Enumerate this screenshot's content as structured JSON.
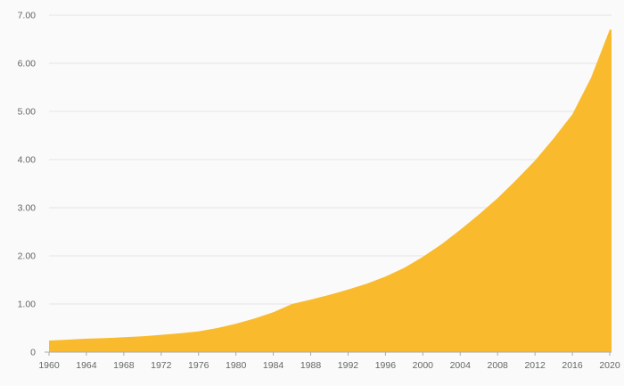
{
  "chart": {
    "background": "#fafafa",
    "area_color": "#f9bb2d",
    "grid_color": "#e4e4e4",
    "axis_color": "#aaaaaa",
    "tick_color": "#aaaaaa",
    "label_color": "#666666"
  },
  "chart_data": {
    "type": "area",
    "title": "",
    "xlabel": "",
    "ylabel": "",
    "x": [
      1960,
      1962,
      1964,
      1966,
      1968,
      1970,
      1972,
      1974,
      1976,
      1978,
      1980,
      1982,
      1984,
      1986,
      1988,
      1990,
      1992,
      1994,
      1996,
      1998,
      2000,
      2002,
      2004,
      2006,
      2008,
      2010,
      2012,
      2014,
      2016,
      2018,
      2020
    ],
    "values": [
      0.24,
      0.26,
      0.28,
      0.29,
      0.31,
      0.33,
      0.36,
      0.39,
      0.43,
      0.5,
      0.59,
      0.7,
      0.83,
      1.0,
      1.09,
      1.19,
      1.3,
      1.42,
      1.57,
      1.75,
      1.98,
      2.24,
      2.54,
      2.86,
      3.2,
      3.58,
      3.98,
      4.44,
      4.94,
      5.7,
      6.7
    ],
    "xlim": [
      1960,
      2020
    ],
    "ylim": [
      0,
      7
    ],
    "x_ticks": [
      1960,
      1964,
      1968,
      1972,
      1976,
      1980,
      1984,
      1988,
      1992,
      1996,
      2000,
      2004,
      2008,
      2012,
      2016,
      2020
    ],
    "y_ticks": [
      0,
      1,
      2,
      3,
      4,
      5,
      6,
      7
    ],
    "y_tick_labels": [
      "0",
      "1.00",
      "2.00",
      "3.00",
      "4.00",
      "5.00",
      "6.00",
      "7.00"
    ],
    "grid": true,
    "legend": "none"
  }
}
